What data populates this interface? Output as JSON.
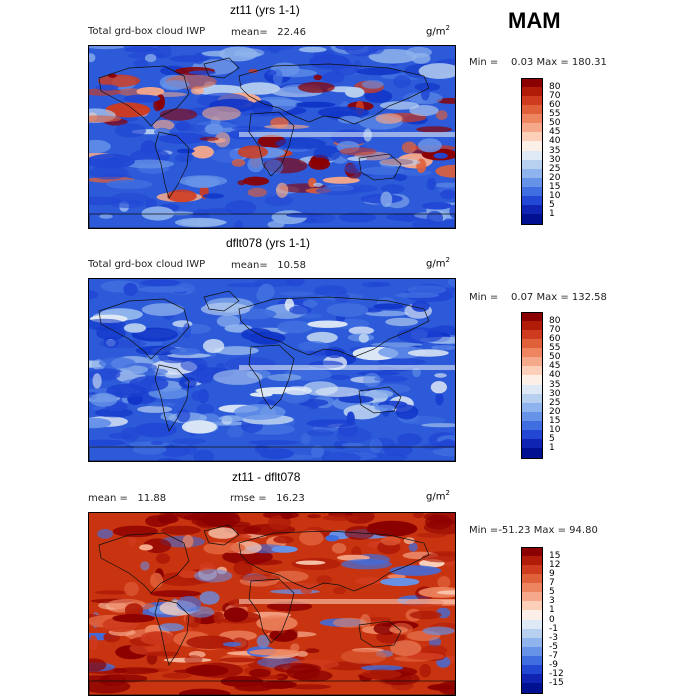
{
  "season": "MAM",
  "panels": [
    {
      "id": "top",
      "title": "zt11 (yrs 1-1)",
      "left_label": "Total grd-box cloud IWP",
      "mean_label": "mean=",
      "mean_value": "22.46",
      "units_base": "g/m",
      "units_exp": "2",
      "min_label": "Min =",
      "min_value": "0.03",
      "max_label": "Max =",
      "max_value": "180.31",
      "colorbar": {
        "ticks": [
          "80",
          "70",
          "60",
          "55",
          "50",
          "45",
          "40",
          "35",
          "30",
          "25",
          "20",
          "15",
          "10",
          "5",
          "1"
        ],
        "colors": [
          "#8b0000",
          "#b01c08",
          "#cf3b1e",
          "#e0603a",
          "#ee8561",
          "#f6a98a",
          "#fbcfb8",
          "#fbefe8",
          "#dfe9f6",
          "#b8d0f0",
          "#8fb3ec",
          "#6692e8",
          "#3f6ee0",
          "#2147d4",
          "#0f24b3",
          "#001090"
        ]
      },
      "style": "mixed"
    },
    {
      "id": "middle",
      "title": "dflt078 (yrs 1-1)",
      "left_label": "Total grd-box cloud IWP",
      "mean_label": "mean=",
      "mean_value": "10.58",
      "units_base": "g/m",
      "units_exp": "2",
      "min_label": "Min =",
      "min_value": "0.07",
      "max_label": "Max =",
      "max_value": "132.58",
      "colorbar": {
        "ticks": [
          "80",
          "70",
          "60",
          "55",
          "50",
          "45",
          "40",
          "35",
          "30",
          "25",
          "20",
          "15",
          "10",
          "5",
          "1"
        ],
        "colors": [
          "#8b0000",
          "#b01c08",
          "#cf3b1e",
          "#e0603a",
          "#ee8561",
          "#f6a98a",
          "#fbcfb8",
          "#fbefe8",
          "#dfe9f6",
          "#b8d0f0",
          "#8fb3ec",
          "#6692e8",
          "#3f6ee0",
          "#2147d4",
          "#0f24b3",
          "#001090"
        ]
      },
      "style": "blue"
    },
    {
      "id": "bottom",
      "title": "zt11 - dflt078",
      "left_label": "mean =",
      "mean_label": "",
      "mean_value": "11.88",
      "rmse_label": "rmse =",
      "rmse_value": "16.23",
      "units_base": "g/m",
      "units_exp": "2",
      "min_label": "Min =",
      "min_value": "-51.23",
      "max_label": "Max =",
      "max_value": "94.80",
      "colorbar": {
        "ticks": [
          "15",
          "12",
          "9",
          "7",
          "5",
          "3",
          "1",
          "0",
          "-1",
          "-3",
          "-5",
          "-7",
          "-9",
          "-12",
          "-15"
        ],
        "colors": [
          "#8b0000",
          "#b01c08",
          "#cf3b1e",
          "#e0603a",
          "#ee8561",
          "#f6a98a",
          "#fbcfb8",
          "#fbefe8",
          "#dfe9f6",
          "#b8d0f0",
          "#8fb3ec",
          "#6692e8",
          "#3f6ee0",
          "#2147d4",
          "#0f24b3",
          "#001090"
        ]
      },
      "style": "red"
    }
  ]
}
